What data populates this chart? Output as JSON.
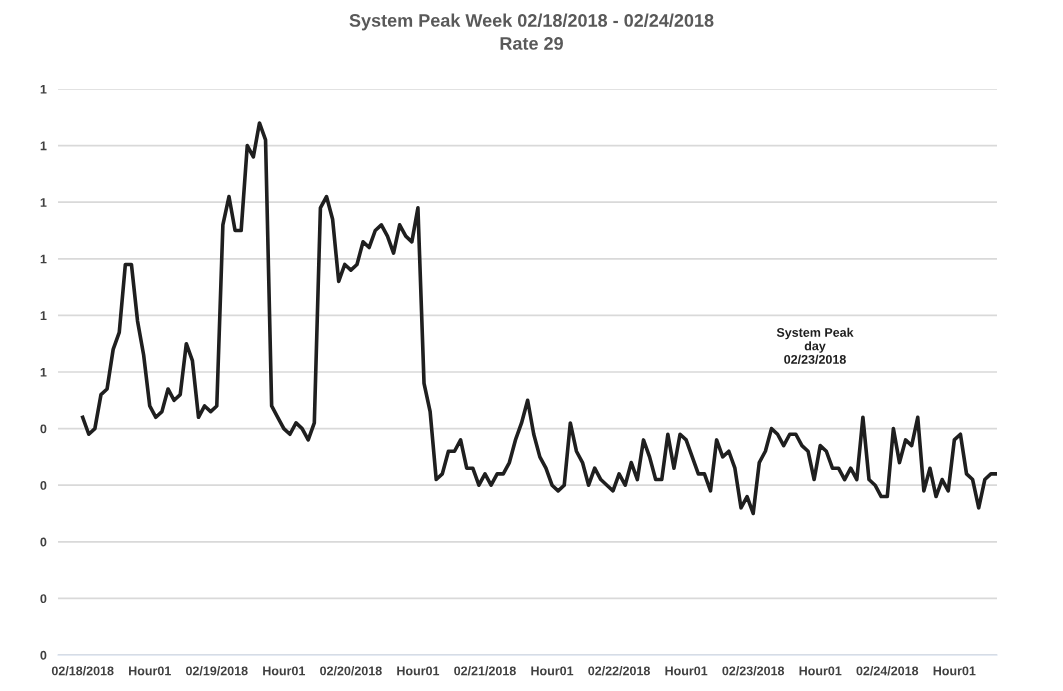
{
  "chart_data": {
    "type": "line",
    "title": "System Peak Week 02/18/2018 - 02/24/2018",
    "subtitle": "Rate 29",
    "annotations": [
      "System Peak\nday\n02/23/2018"
    ],
    "categories": [
      "02/18/2018",
      null,
      null,
      null,
      null,
      null,
      null,
      null,
      null,
      null,
      null,
      "Hour01",
      null,
      null,
      null,
      null,
      null,
      null,
      null,
      null,
      null,
      null,
      "02/19/2018",
      null,
      null,
      null,
      null,
      null,
      null,
      null,
      null,
      null,
      null,
      "Hour01",
      null,
      null,
      null,
      null,
      null,
      null,
      null,
      null,
      null,
      null,
      "02/20/2018",
      null,
      null,
      null,
      null,
      null,
      null,
      null,
      null,
      null,
      null,
      "Hour01",
      null,
      null,
      null,
      null,
      null,
      null,
      null,
      null,
      null,
      null,
      "02/21/2018",
      null,
      null,
      null,
      null,
      null,
      null,
      null,
      null,
      null,
      null,
      "Hour01",
      null,
      null,
      null,
      null,
      null,
      null,
      null,
      null,
      null,
      null,
      "02/22/2018",
      null,
      null,
      null,
      null,
      null,
      null,
      null,
      null,
      null,
      null,
      "Hour01",
      null,
      null,
      null,
      null,
      null,
      null,
      null,
      null,
      null,
      null,
      "02/23/2018",
      null,
      null,
      null,
      null,
      null,
      null,
      null,
      null,
      null,
      null,
      "Hour01",
      null,
      null,
      null,
      null,
      null,
      null,
      null,
      null,
      null,
      null,
      "02/24/2018",
      null,
      null,
      null,
      null,
      null,
      null,
      null,
      null,
      null,
      null,
      "Hour01",
      null,
      null,
      null,
      null,
      null,
      null,
      null
    ],
    "series": [
      {
        "color": "#1f1f1f",
        "values": [
          0.42,
          0.39,
          0.4,
          0.46,
          0.47,
          0.54,
          0.57,
          0.69,
          0.69,
          0.59,
          0.53,
          0.44,
          0.42,
          0.43,
          0.47,
          0.45,
          0.46,
          0.55,
          0.52,
          0.42,
          0.44,
          0.43,
          0.44,
          0.76,
          0.81,
          0.75,
          0.75,
          0.9,
          0.88,
          0.94,
          0.91,
          0.44,
          0.42,
          0.4,
          0.39,
          0.41,
          0.4,
          0.38,
          0.41,
          0.79,
          0.81,
          0.77,
          0.66,
          0.69,
          0.68,
          0.69,
          0.73,
          0.72,
          0.75,
          0.76,
          0.74,
          0.71,
          0.76,
          0.74,
          0.73,
          0.79,
          0.48,
          0.43,
          0.31,
          0.32,
          0.36,
          0.36,
          0.38,
          0.33,
          0.33,
          0.3,
          0.32,
          0.3,
          0.32,
          0.32,
          0.34,
          0.38,
          0.41,
          0.45,
          0.39,
          0.35,
          0.33,
          0.3,
          0.29,
          0.3,
          0.41,
          0.36,
          0.34,
          0.3,
          0.33,
          0.31,
          0.3,
          0.29,
          0.32,
          0.3,
          0.34,
          0.31,
          0.38,
          0.35,
          0.31,
          0.31,
          0.39,
          0.33,
          0.39,
          0.38,
          0.35,
          0.32,
          0.32,
          0.29,
          0.38,
          0.35,
          0.36,
          0.33,
          0.26,
          0.28,
          0.25,
          0.34,
          0.36,
          0.4,
          0.39,
          0.37,
          0.39,
          0.39,
          0.37,
          0.36,
          0.31,
          0.37,
          0.36,
          0.33,
          0.33,
          0.31,
          0.33,
          0.31,
          0.42,
          0.31,
          0.3,
          0.28,
          0.28,
          0.4,
          0.34,
          0.38,
          0.37,
          0.42,
          0.29,
          0.33,
          0.28,
          0.31,
          0.29,
          0.38,
          0.39,
          0.32,
          0.31,
          0.26,
          0.31,
          0.32,
          0.32
        ]
      }
    ],
    "ylim": [
      0,
      1
    ],
    "yticks": [
      0,
      {
        "value": 0.1,
        "label": "0"
      },
      {
        "value": 0.2,
        "label": "0"
      },
      {
        "value": 0.3,
        "label": "0"
      },
      {
        "value": 0.4,
        "label": "0"
      },
      {
        "value": 0.5,
        "label": "1"
      },
      {
        "value": 0.6,
        "label": "1"
      },
      {
        "value": 0.7,
        "label": "1"
      },
      {
        "value": 0.8,
        "label": "1"
      },
      {
        "value": 0.9,
        "label": "1"
      },
      1
    ],
    "grid": "y",
    "line_style": "solid",
    "marker": "none"
  }
}
